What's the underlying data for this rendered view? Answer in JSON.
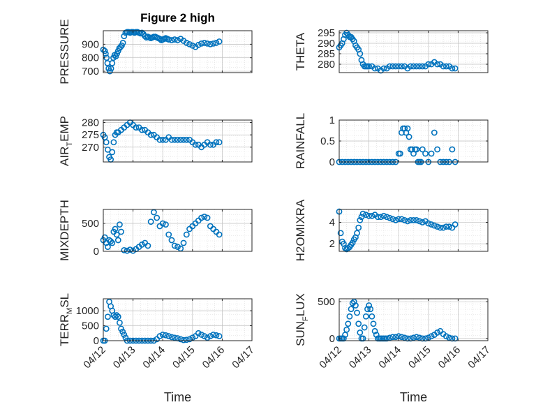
{
  "colors": {
    "marker": "#0072BD",
    "axis": "#262626",
    "grid": "#d9d9d9"
  },
  "chart_data": [
    {
      "type": "scatter",
      "title": "Figure 2 high",
      "ylabel": "PRESSURE",
      "xlabel": "",
      "ylim": [
        690,
        1000
      ],
      "yticks": [
        700,
        800,
        900
      ],
      "ytick_labels": [
        "700",
        "800",
        "900"
      ],
      "xlim": [
        0,
        5
      ],
      "grid": true,
      "x": [
        0.0,
        0.05,
        0.08,
        0.11,
        0.14,
        0.18,
        0.22,
        0.26,
        0.3,
        0.34,
        0.38,
        0.42,
        0.46,
        0.5,
        0.54,
        0.58,
        0.62,
        0.66,
        0.7,
        0.75,
        0.8,
        0.85,
        0.9,
        0.95,
        1.0,
        1.05,
        1.1,
        1.15,
        1.2,
        1.25,
        1.3,
        1.35,
        1.4,
        1.45,
        1.5,
        1.55,
        1.6,
        1.65,
        1.7,
        1.75,
        1.8,
        1.85,
        1.9,
        1.95,
        2.0,
        2.05,
        2.1,
        2.15,
        2.2,
        2.3,
        2.4,
        2.5,
        2.6,
        2.7,
        2.8,
        2.9,
        3.0,
        3.1,
        3.2,
        3.3,
        3.4,
        3.5,
        3.6,
        3.7,
        3.8,
        3.9
      ],
      "y": [
        860,
        850,
        830,
        800,
        760,
        720,
        700,
        720,
        760,
        800,
        820,
        810,
        830,
        850,
        870,
        880,
        890,
        910,
        960,
        985,
        990,
        990,
        985,
        990,
        990,
        985,
        990,
        990,
        985,
        980,
        985,
        975,
        960,
        950,
        955,
        950,
        945,
        950,
        955,
        955,
        950,
        945,
        940,
        930,
        935,
        940,
        945,
        940,
        935,
        930,
        935,
        930,
        940,
        925,
        910,
        900,
        890,
        880,
        895,
        905,
        910,
        905,
        900,
        905,
        910,
        920
      ]
    },
    {
      "type": "scatter",
      "title": "",
      "ylabel": "THETA",
      "xlabel": "",
      "ylim": [
        276,
        296
      ],
      "yticks": [
        280,
        285,
        290,
        295
      ],
      "ytick_labels": [
        "280",
        "285",
        "290",
        "295"
      ],
      "xlim": [
        0,
        5
      ],
      "grid": true,
      "x": [
        0.0,
        0.05,
        0.1,
        0.15,
        0.2,
        0.25,
        0.3,
        0.35,
        0.4,
        0.45,
        0.5,
        0.55,
        0.6,
        0.65,
        0.7,
        0.75,
        0.8,
        0.85,
        0.9,
        0.95,
        1.0,
        1.1,
        1.2,
        1.3,
        1.4,
        1.5,
        1.6,
        1.7,
        1.8,
        1.9,
        2.0,
        2.1,
        2.2,
        2.3,
        2.4,
        2.5,
        2.6,
        2.7,
        2.8,
        2.9,
        3.0,
        3.1,
        3.2,
        3.3,
        3.4,
        3.5,
        3.6,
        3.7,
        3.8,
        3.9
      ],
      "y": [
        288,
        289,
        290,
        292,
        294,
        295,
        294,
        293,
        293,
        292,
        291,
        289,
        288,
        287,
        285,
        282,
        280,
        279,
        279,
        279,
        279,
        279,
        278,
        278,
        277,
        278,
        278,
        279,
        279,
        279,
        279,
        279,
        279,
        278,
        279,
        279,
        279,
        279,
        279,
        279,
        280,
        280,
        281,
        280,
        280,
        279,
        279,
        279,
        278,
        278
      ]
    },
    {
      "type": "scatter",
      "title": "",
      "ylabel": "AIR_TEMP",
      "ylabel_main": "AIR",
      "ylabel_sub": "T",
      "ylabel_rest": "EMP",
      "xlabel": "",
      "ylim": [
        264,
        281
      ],
      "yticks": [
        270,
        275,
        280
      ],
      "ytick_labels": [
        "270",
        "275",
        "280"
      ],
      "xlim": [
        0,
        5
      ],
      "grid": true,
      "x": [
        0.0,
        0.05,
        0.1,
        0.15,
        0.2,
        0.25,
        0.3,
        0.35,
        0.4,
        0.45,
        0.5,
        0.6,
        0.7,
        0.8,
        0.9,
        1.0,
        1.1,
        1.2,
        1.3,
        1.4,
        1.5,
        1.6,
        1.7,
        1.8,
        1.9,
        2.0,
        2.1,
        2.2,
        2.3,
        2.4,
        2.5,
        2.6,
        2.7,
        2.8,
        2.9,
        3.0,
        3.1,
        3.2,
        3.3,
        3.4,
        3.5,
        3.6,
        3.7,
        3.8,
        3.9
      ],
      "y": [
        275,
        274,
        272,
        269,
        266,
        265,
        268,
        272,
        275,
        276,
        276,
        277,
        278,
        279,
        280,
        279,
        278,
        278,
        277,
        277,
        276,
        275,
        275,
        274,
        273,
        273,
        273,
        274,
        273,
        273,
        273,
        273,
        273,
        273,
        273,
        272,
        271,
        271,
        270,
        271,
        272,
        271,
        271,
        272,
        272
      ]
    },
    {
      "type": "scatter",
      "title": "",
      "ylabel": "RAINFALL",
      "xlabel": "",
      "ylim": [
        0,
        1
      ],
      "yticks": [
        0,
        0.5,
        1
      ],
      "ytick_labels": [
        "0",
        "0.5",
        "1"
      ],
      "xlim": [
        0,
        5
      ],
      "grid": true,
      "x": [
        0.0,
        0.1,
        0.2,
        0.3,
        0.4,
        0.5,
        0.6,
        0.7,
        0.8,
        0.9,
        1.0,
        1.1,
        1.2,
        1.3,
        1.4,
        1.5,
        1.6,
        1.7,
        1.8,
        1.9,
        2.0,
        2.05,
        2.1,
        2.15,
        2.2,
        2.25,
        2.3,
        2.35,
        2.4,
        2.45,
        2.5,
        2.55,
        2.6,
        2.65,
        2.7,
        2.75,
        2.8,
        2.9,
        3.0,
        3.1,
        3.2,
        3.3,
        3.4,
        3.5,
        3.6,
        3.7,
        3.8,
        3.9
      ],
      "y": [
        0,
        0,
        0,
        0,
        0,
        0,
        0,
        0,
        0,
        0,
        0,
        0,
        0,
        0,
        0,
        0,
        0,
        0,
        0,
        0,
        0.2,
        0.2,
        0.7,
        0.8,
        0.8,
        0.7,
        0.8,
        0.6,
        0.3,
        0.3,
        0.2,
        0.3,
        0.3,
        0,
        0,
        0,
        0.3,
        0.2,
        0,
        0.2,
        0.7,
        0.3,
        0,
        0,
        0,
        0,
        0.3,
        0
      ]
    },
    {
      "type": "scatter",
      "title": "",
      "ylabel": "MIXDEPTH",
      "xlabel": "",
      "ylim": [
        0,
        750
      ],
      "yticks": [
        0,
        500
      ],
      "ytick_labels": [
        "0",
        "500"
      ],
      "xlim": [
        0,
        5
      ],
      "grid": true,
      "x": [
        0.0,
        0.05,
        0.1,
        0.15,
        0.2,
        0.25,
        0.3,
        0.35,
        0.4,
        0.45,
        0.5,
        0.55,
        0.6,
        0.7,
        0.8,
        0.9,
        1.0,
        1.1,
        1.2,
        1.3,
        1.4,
        1.5,
        1.6,
        1.7,
        1.8,
        1.9,
        2.0,
        2.1,
        2.2,
        2.3,
        2.4,
        2.5,
        2.6,
        2.7,
        2.8,
        2.9,
        3.0,
        3.1,
        3.2,
        3.3,
        3.4,
        3.5,
        3.6,
        3.7,
        3.8,
        3.9
      ],
      "y": [
        200,
        250,
        150,
        80,
        200,
        180,
        150,
        350,
        400,
        300,
        200,
        480,
        350,
        20,
        10,
        30,
        10,
        40,
        80,
        120,
        150,
        100,
        530,
        700,
        600,
        450,
        500,
        480,
        300,
        200,
        100,
        80,
        50,
        150,
        300,
        400,
        450,
        500,
        550,
        600,
        620,
        600,
        450,
        400,
        350,
        300
      ]
    },
    {
      "type": "scatter",
      "title": "",
      "ylabel": "H2OMIXRA",
      "xlabel": "",
      "ylim": [
        1.3,
        5.2
      ],
      "yticks": [
        2,
        4
      ],
      "ytick_labels": [
        "2",
        "4"
      ],
      "xlim": [
        0,
        5
      ],
      "grid": true,
      "x": [
        0.0,
        0.05,
        0.1,
        0.15,
        0.2,
        0.25,
        0.3,
        0.35,
        0.4,
        0.45,
        0.5,
        0.55,
        0.6,
        0.65,
        0.7,
        0.75,
        0.8,
        0.9,
        1.0,
        1.1,
        1.2,
        1.3,
        1.4,
        1.5,
        1.6,
        1.7,
        1.8,
        1.9,
        2.0,
        2.1,
        2.2,
        2.3,
        2.4,
        2.5,
        2.6,
        2.7,
        2.8,
        2.9,
        3.0,
        3.1,
        3.2,
        3.3,
        3.4,
        3.5,
        3.6,
        3.7,
        3.8,
        3.9
      ],
      "y": [
        5.0,
        3.0,
        2.2,
        2.0,
        1.6,
        1.5,
        1.6,
        1.7,
        1.9,
        2.1,
        2.4,
        2.6,
        3.0,
        3.5,
        4.2,
        4.5,
        4.8,
        4.7,
        4.6,
        4.6,
        4.7,
        4.5,
        4.5,
        4.6,
        4.5,
        4.4,
        4.3,
        4.2,
        4.3,
        4.3,
        4.2,
        4.1,
        4.2,
        4.2,
        4.2,
        4.1,
        4.0,
        4.1,
        3.9,
        3.8,
        3.7,
        3.6,
        3.5,
        3.5,
        3.6,
        3.6,
        3.5,
        3.8
      ]
    },
    {
      "type": "scatter",
      "title": "",
      "ylabel": "TERR_MSL",
      "ylabel_main": "TERR",
      "ylabel_sub": "M",
      "ylabel_rest": "SL",
      "xlabel": "Time",
      "ylim": [
        0,
        1400
      ],
      "yticks": [
        0,
        500,
        1000
      ],
      "ytick_labels": [
        "0",
        "500",
        "1000"
      ],
      "xlim": [
        0,
        5
      ],
      "grid": true,
      "xticks": [
        0,
        1,
        2,
        3,
        4,
        5
      ],
      "xtick_labels": [
        "04/12",
        "04/13",
        "04/14",
        "04/15",
        "04/16",
        "04/17"
      ],
      "x": [
        0.0,
        0.05,
        0.1,
        0.15,
        0.2,
        0.25,
        0.3,
        0.35,
        0.4,
        0.45,
        0.5,
        0.55,
        0.6,
        0.65,
        0.7,
        0.75,
        0.8,
        0.9,
        1.0,
        1.1,
        1.2,
        1.3,
        1.4,
        1.5,
        1.6,
        1.7,
        1.8,
        1.9,
        2.0,
        2.1,
        2.2,
        2.3,
        2.4,
        2.5,
        2.6,
        2.7,
        2.8,
        2.9,
        3.0,
        3.1,
        3.2,
        3.3,
        3.4,
        3.5,
        3.6,
        3.7,
        3.8,
        3.9
      ],
      "y": [
        0,
        0,
        400,
        800,
        1300,
        1150,
        1000,
        850,
        800,
        850,
        800,
        600,
        400,
        300,
        200,
        100,
        0,
        0,
        0,
        0,
        0,
        0,
        0,
        0,
        0,
        0,
        50,
        150,
        200,
        180,
        150,
        120,
        100,
        80,
        50,
        20,
        30,
        50,
        100,
        150,
        250,
        200,
        150,
        100,
        150,
        200,
        180,
        150
      ]
    },
    {
      "type": "scatter",
      "title": "",
      "ylabel": "SUN_FLUX",
      "ylabel_main": "SUN",
      "ylabel_sub": "F",
      "ylabel_rest": "LUX",
      "xlabel": "Time",
      "ylim": [
        -30,
        540
      ],
      "yticks": [
        0,
        500
      ],
      "ytick_labels": [
        "0",
        "500"
      ],
      "xlim": [
        0,
        5
      ],
      "grid": true,
      "xticks": [
        0,
        1,
        2,
        3,
        4,
        5
      ],
      "xtick_labels": [
        "04/12",
        "04/13",
        "04/14",
        "04/15",
        "04/16",
        "04/17"
      ],
      "x": [
        0.0,
        0.05,
        0.1,
        0.15,
        0.2,
        0.25,
        0.3,
        0.35,
        0.4,
        0.45,
        0.5,
        0.55,
        0.6,
        0.65,
        0.7,
        0.75,
        0.8,
        0.85,
        0.9,
        0.95,
        1.0,
        1.05,
        1.1,
        1.15,
        1.2,
        1.25,
        1.3,
        1.35,
        1.4,
        1.45,
        1.5,
        1.55,
        1.6,
        1.7,
        1.8,
        1.9,
        2.0,
        2.1,
        2.2,
        2.3,
        2.4,
        2.5,
        2.6,
        2.7,
        2.8,
        2.9,
        3.0,
        3.1,
        3.2,
        3.3,
        3.4,
        3.5,
        3.6,
        3.7,
        3.8,
        3.9
      ],
      "y": [
        0,
        0,
        0,
        0,
        50,
        120,
        200,
        300,
        400,
        480,
        500,
        450,
        350,
        200,
        80,
        0,
        0,
        150,
        300,
        400,
        450,
        400,
        300,
        200,
        100,
        50,
        0,
        0,
        0,
        0,
        0,
        0,
        0,
        10,
        20,
        20,
        30,
        20,
        10,
        0,
        0,
        10,
        20,
        10,
        0,
        0,
        10,
        30,
        50,
        80,
        100,
        60,
        30,
        10,
        0,
        0
      ]
    }
  ]
}
